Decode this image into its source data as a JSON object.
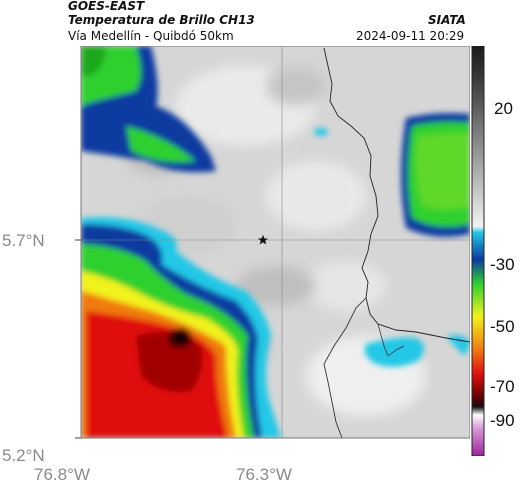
{
  "header": {
    "app_title": "GOES-EAST",
    "product_title": "Temperatura de Brillo CH13",
    "organization": "SIATA",
    "route": "Vía Medellín - Quibdó 50km",
    "timestamp": "2024-09-11 20:29"
  },
  "map": {
    "lat_labels": [
      "5.7°N",
      "5.2°N"
    ],
    "lon_labels": [
      "76.8°W",
      "76.3°W"
    ],
    "marker": "star-icon"
  },
  "colorbar": {
    "tick_labels": [
      "20",
      "-30",
      "-50",
      "-70",
      "-90"
    ],
    "colors": {
      "warm_gray": "#d9d9d9",
      "dark_gray": "#3a3a3a",
      "cyan": "#22c8e6",
      "blue": "#0a3aa0",
      "green": "#2fd02f",
      "yellow": "#f2f21e",
      "orange": "#f07a10",
      "red": "#e01010",
      "dark_red": "#5a0000",
      "magenta": "#c040c0"
    }
  }
}
